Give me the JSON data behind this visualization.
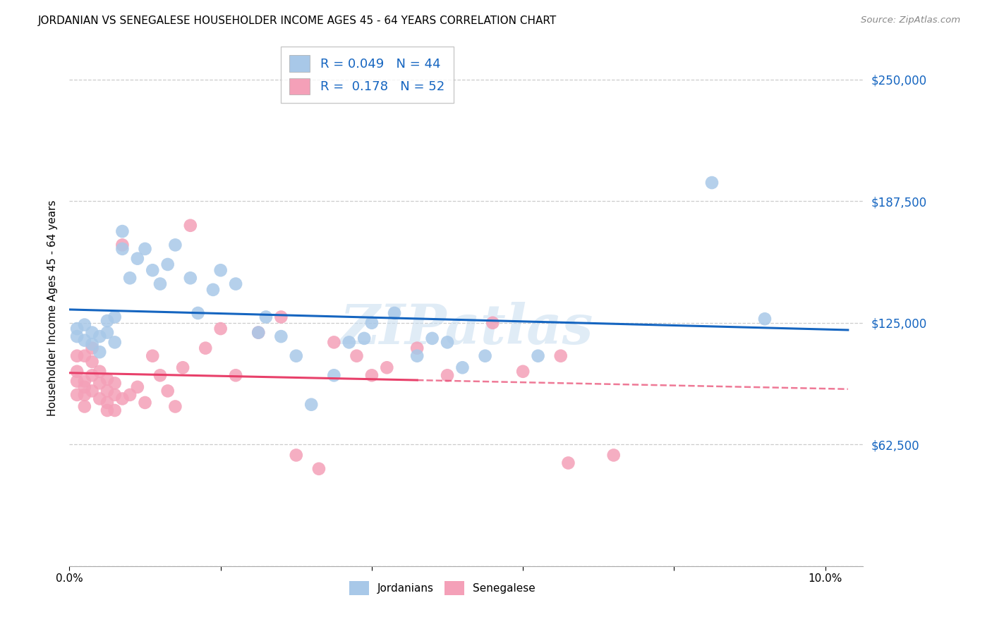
{
  "title": "JORDANIAN VS SENEGALESE HOUSEHOLDER INCOME AGES 45 - 64 YEARS CORRELATION CHART",
  "source": "Source: ZipAtlas.com",
  "ylabel": "Householder Income Ages 45 - 64 years",
  "xlim": [
    0.0,
    0.105
  ],
  "ylim": [
    0,
    265000
  ],
  "yticks": [
    0,
    62500,
    125000,
    187500,
    250000
  ],
  "ytick_labels": [
    "",
    "$62,500",
    "$125,000",
    "$187,500",
    "$250,000"
  ],
  "xticks": [
    0.0,
    0.02,
    0.04,
    0.06,
    0.08,
    0.1
  ],
  "jordanian_color": "#a8c8e8",
  "senegalese_color": "#f4a0b8",
  "trend_blue": "#1565c0",
  "trend_pink": "#e8406a",
  "background_color": "#ffffff",
  "grid_color": "#cccccc",
  "watermark": "ZIPatlas",
  "r_jordan": "0.049",
  "n_jordan": "44",
  "r_senegal": "0.178",
  "n_senegal": "52",
  "jordanians_x": [
    0.001,
    0.001,
    0.002,
    0.002,
    0.003,
    0.003,
    0.004,
    0.004,
    0.005,
    0.005,
    0.006,
    0.006,
    0.007,
    0.007,
    0.008,
    0.009,
    0.01,
    0.011,
    0.012,
    0.013,
    0.014,
    0.016,
    0.017,
    0.019,
    0.02,
    0.022,
    0.025,
    0.026,
    0.028,
    0.03,
    0.032,
    0.035,
    0.037,
    0.039,
    0.04,
    0.043,
    0.046,
    0.048,
    0.05,
    0.052,
    0.055,
    0.062,
    0.085,
    0.092
  ],
  "jordanians_y": [
    118000,
    122000,
    116000,
    124000,
    114000,
    120000,
    110000,
    118000,
    120000,
    126000,
    115000,
    128000,
    163000,
    172000,
    148000,
    158000,
    163000,
    152000,
    145000,
    155000,
    165000,
    148000,
    130000,
    142000,
    152000,
    145000,
    120000,
    128000,
    118000,
    108000,
    83000,
    98000,
    115000,
    117000,
    125000,
    130000,
    108000,
    117000,
    115000,
    102000,
    108000,
    108000,
    197000,
    127000
  ],
  "senegalese_x": [
    0.001,
    0.001,
    0.001,
    0.001,
    0.002,
    0.002,
    0.002,
    0.002,
    0.002,
    0.003,
    0.003,
    0.003,
    0.003,
    0.004,
    0.004,
    0.004,
    0.005,
    0.005,
    0.005,
    0.005,
    0.006,
    0.006,
    0.006,
    0.007,
    0.007,
    0.008,
    0.009,
    0.01,
    0.011,
    0.012,
    0.013,
    0.014,
    0.015,
    0.016,
    0.018,
    0.02,
    0.022,
    0.025,
    0.028,
    0.03,
    0.033,
    0.035,
    0.038,
    0.04,
    0.042,
    0.046,
    0.05,
    0.056,
    0.06,
    0.065,
    0.066,
    0.072
  ],
  "senegalese_y": [
    100000,
    108000,
    95000,
    88000,
    92000,
    88000,
    108000,
    95000,
    82000,
    90000,
    98000,
    105000,
    112000,
    86000,
    94000,
    100000,
    84000,
    90000,
    96000,
    80000,
    88000,
    94000,
    80000,
    86000,
    165000,
    88000,
    92000,
    84000,
    108000,
    98000,
    90000,
    82000,
    102000,
    175000,
    112000,
    122000,
    98000,
    120000,
    128000,
    57000,
    50000,
    115000,
    108000,
    98000,
    102000,
    112000,
    98000,
    125000,
    100000,
    108000,
    53000,
    57000
  ]
}
